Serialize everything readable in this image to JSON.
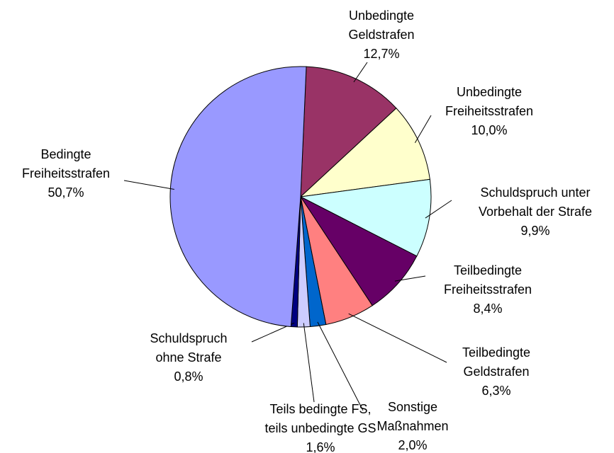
{
  "chart_data": {
    "type": "pie",
    "categories": [
      "Unbedingte\nGeldstrafen",
      "Unbedingte\nFreiheitsstrafen",
      "Schuldspruch unter\nVorbehalt der Strafe",
      "Teilbedingte\nFreiheitsstrafen",
      "Teilbedingte\nGeldstrafen",
      "Sonstige\nMaßnahmen",
      "Teils bedingte FS,\nteils unbedingte GS",
      "Schuldspruch\nohne Strafe",
      "Bedingte\nFreiheitsstrafen"
    ],
    "values": [
      12.7,
      10.0,
      9.9,
      8.4,
      6.3,
      2.0,
      1.6,
      0.8,
      50.7
    ],
    "value_labels": [
      "12,7%",
      "10,0%",
      "9,9%",
      "8,4%",
      "6,3%",
      "2,0%",
      "1,6%",
      "0,8%",
      "50,7%"
    ],
    "colors": [
      "#993366",
      "#ffffcc",
      "#ccffff",
      "#660066",
      "#ff8080",
      "#0066cc",
      "#ccccff",
      "#000080",
      "#9999ff"
    ]
  }
}
